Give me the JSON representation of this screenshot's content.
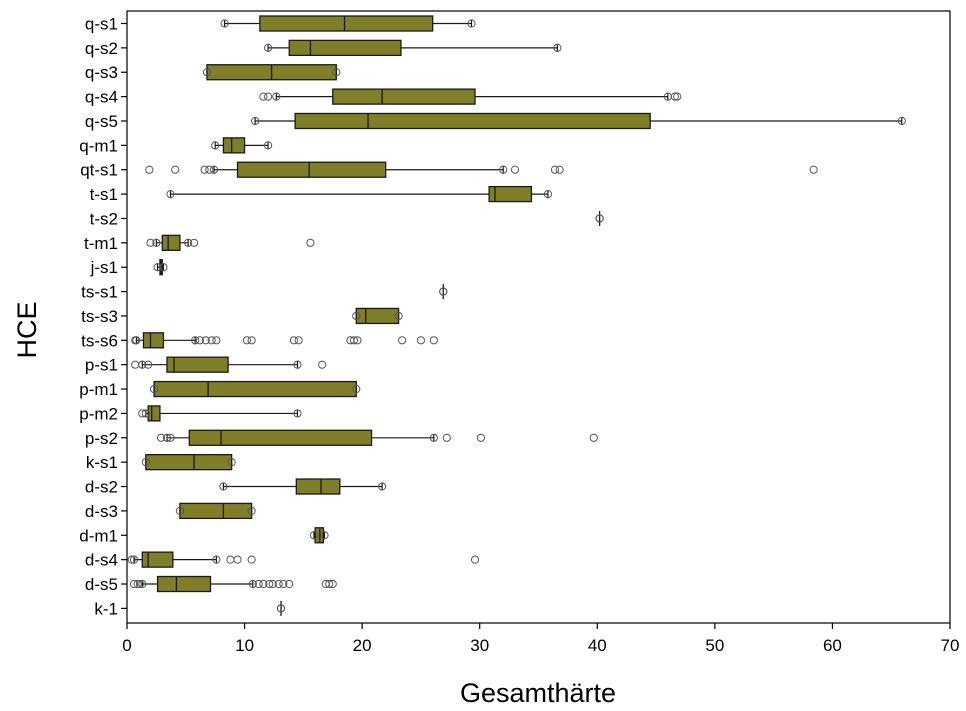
{
  "chart_data": {
    "type": "boxplot",
    "orientation": "horizontal",
    "xlabel": "Gesamthärte",
    "ylabel": "HCE",
    "xlim": [
      0,
      70
    ],
    "xticks": [
      0,
      10,
      20,
      30,
      40,
      50,
      60,
      70
    ],
    "grid": false,
    "legend": "none",
    "colors": {
      "box_fill": "#7f7f2a",
      "box_edge": "#1a1a1a",
      "outlier": "#555555"
    },
    "categories": [
      "q-s1",
      "q-s2",
      "q-s3",
      "q-s4",
      "q-s5",
      "q-m1",
      "qt-s1",
      "t-s1",
      "t-s2",
      "t-m1",
      "j-s1",
      "ts-s1",
      "ts-s3",
      "ts-s6",
      "p-s1",
      "p-m1",
      "p-m2",
      "p-s2",
      "k-s1",
      "d-s2",
      "d-s3",
      "d-m1",
      "d-s4",
      "d-s5",
      "k-1"
    ],
    "boxes": [
      {
        "label": "q-s1",
        "whisker_low": 8.3,
        "q1": 11.3,
        "median": 18.5,
        "q3": 26.0,
        "whisker_high": 29.3,
        "outliers": []
      },
      {
        "label": "q-s2",
        "whisker_low": 12.0,
        "q1": 13.8,
        "median": 15.6,
        "q3": 23.3,
        "whisker_high": 36.6,
        "outliers": []
      },
      {
        "label": "q-s3",
        "whisker_low": 6.8,
        "q1": 6.8,
        "median": 12.3,
        "q3": 17.8,
        "whisker_high": 17.8,
        "outliers": []
      },
      {
        "label": "q-s4",
        "whisker_low": 12.7,
        "q1": 17.5,
        "median": 21.7,
        "q3": 29.6,
        "whisker_high": 46.0,
        "outliers": [
          11.6,
          12.0,
          46.6,
          46.8
        ]
      },
      {
        "label": "q-s5",
        "whisker_low": 10.9,
        "q1": 14.3,
        "median": 20.5,
        "q3": 44.5,
        "whisker_high": 65.9,
        "outliers": []
      },
      {
        "label": "q-m1",
        "whisker_low": 7.5,
        "q1": 8.2,
        "median": 8.9,
        "q3": 10.0,
        "whisker_high": 12.0,
        "outliers": []
      },
      {
        "label": "qt-s1",
        "whisker_low": 7.4,
        "q1": 9.4,
        "median": 15.5,
        "q3": 22.0,
        "whisker_high": 32.0,
        "outliers": [
          1.9,
          4.1,
          6.6,
          7.0,
          33.0,
          36.4,
          36.8,
          58.4
        ]
      },
      {
        "label": "t-s1",
        "whisker_low": 3.7,
        "q1": 30.8,
        "median": 31.3,
        "q3": 34.4,
        "whisker_high": 35.8,
        "outliers": []
      },
      {
        "label": "t-s2",
        "whisker_low": 40.2,
        "q1": 40.2,
        "median": 40.2,
        "q3": 40.2,
        "whisker_high": 40.2,
        "outliers": []
      },
      {
        "label": "t-m1",
        "whisker_low": 2.5,
        "q1": 3.0,
        "median": 3.5,
        "q3": 4.5,
        "whisker_high": 5.2,
        "outliers": [
          2.0,
          5.7,
          15.6
        ]
      },
      {
        "label": "j-s1",
        "whisker_low": 2.6,
        "q1": 2.8,
        "median": 2.9,
        "q3": 3.0,
        "whisker_high": 3.1,
        "outliers": []
      },
      {
        "label": "ts-s1",
        "whisker_low": 26.9,
        "q1": 26.9,
        "median": 26.9,
        "q3": 26.9,
        "whisker_high": 26.9,
        "outliers": []
      },
      {
        "label": "ts-s3",
        "whisker_low": 19.5,
        "q1": 19.5,
        "median": 20.3,
        "q3": 23.1,
        "whisker_high": 23.1,
        "outliers": []
      },
      {
        "label": "ts-s6",
        "whisker_low": 0.8,
        "q1": 1.4,
        "median": 2.0,
        "q3": 3.1,
        "whisker_high": 5.8,
        "outliers": [
          0.7,
          6.2,
          6.7,
          7.2,
          7.6,
          10.2,
          10.6,
          14.2,
          14.6,
          19.0,
          19.3,
          19.6,
          23.4,
          25.0,
          26.1
        ]
      },
      {
        "label": "p-s1",
        "whisker_low": 1.3,
        "q1": 3.4,
        "median": 4.0,
        "q3": 8.6,
        "whisker_high": 14.5,
        "outliers": [
          0.7,
          1.8,
          16.6
        ]
      },
      {
        "label": "p-m1",
        "whisker_low": 2.3,
        "q1": 2.3,
        "median": 6.9,
        "q3": 19.5,
        "whisker_high": 19.5,
        "outliers": []
      },
      {
        "label": "p-m2",
        "whisker_low": 1.6,
        "q1": 1.8,
        "median": 2.1,
        "q3": 2.8,
        "whisker_high": 14.5,
        "outliers": [
          1.3
        ]
      },
      {
        "label": "p-s2",
        "whisker_low": 3.4,
        "q1": 5.3,
        "median": 8.0,
        "q3": 20.8,
        "whisker_high": 26.1,
        "outliers": [
          2.9,
          3.7,
          27.2,
          30.1,
          39.7
        ]
      },
      {
        "label": "k-s1",
        "whisker_low": 1.6,
        "q1": 1.6,
        "median": 5.7,
        "q3": 8.9,
        "whisker_high": 8.9,
        "outliers": []
      },
      {
        "label": "d-s2",
        "whisker_low": 8.2,
        "q1": 14.4,
        "median": 16.5,
        "q3": 18.1,
        "whisker_high": 21.7,
        "outliers": []
      },
      {
        "label": "d-s3",
        "whisker_low": 4.5,
        "q1": 4.5,
        "median": 8.2,
        "q3": 10.6,
        "whisker_high": 10.6,
        "outliers": []
      },
      {
        "label": "d-m1",
        "whisker_low": 15.9,
        "q1": 16.0,
        "median": 16.4,
        "q3": 16.7,
        "whisker_high": 16.8,
        "outliers": []
      },
      {
        "label": "d-s4",
        "whisker_low": 0.6,
        "q1": 1.3,
        "median": 1.8,
        "q3": 3.9,
        "whisker_high": 7.6,
        "outliers": [
          0.4,
          8.8,
          9.4,
          10.6,
          29.6
        ]
      },
      {
        "label": "d-s5",
        "whisker_low": 1.3,
        "q1": 2.6,
        "median": 4.2,
        "q3": 7.1,
        "whisker_high": 10.7,
        "outliers": [
          0.6,
          0.9,
          1.1,
          11.2,
          11.6,
          12.1,
          12.4,
          12.9,
          13.3,
          13.8,
          16.9,
          17.2,
          17.5
        ]
      },
      {
        "label": "k-1",
        "whisker_low": 13.1,
        "q1": 13.1,
        "median": 13.1,
        "q3": 13.1,
        "whisker_high": 13.1,
        "outliers": []
      }
    ]
  }
}
